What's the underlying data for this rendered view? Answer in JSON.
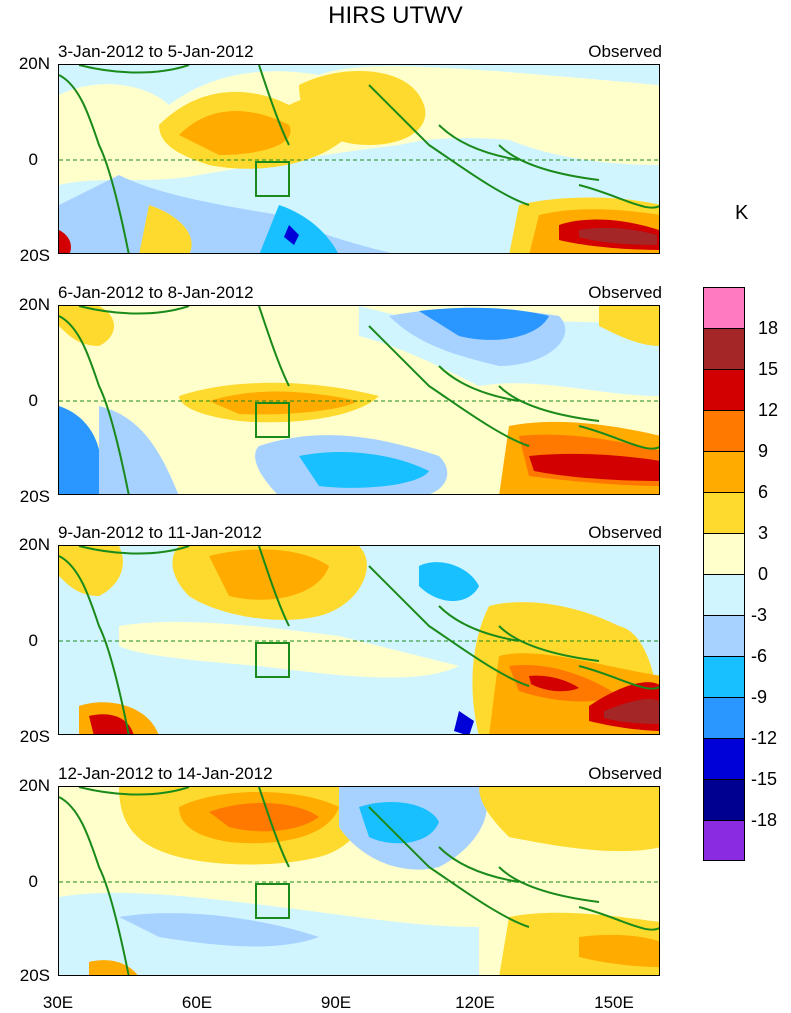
{
  "figure": {
    "title": "HIRS UTWV",
    "unit_label": "K"
  },
  "panels": [
    {
      "date_range": "3-Jan-2012 to 5-Jan-2012",
      "source": "Observed"
    },
    {
      "date_range": "6-Jan-2012 to 8-Jan-2012",
      "source": "Observed"
    },
    {
      "date_range": "9-Jan-2012 to 11-Jan-2012",
      "source": "Observed"
    },
    {
      "date_range": "12-Jan-2012 to 14-Jan-2012",
      "source": "Observed"
    }
  ],
  "axes": {
    "lat_ticks": [
      "20N",
      "0",
      "20S"
    ],
    "lon_ticks": [
      "30E",
      "60E",
      "90E",
      "120E",
      "150E"
    ],
    "lon_range": [
      30,
      160
    ],
    "lat_range": [
      -20,
      20
    ]
  },
  "colorbar": {
    "labels": [
      "18",
      "15",
      "12",
      "9",
      "6",
      "3",
      "0",
      "-3",
      "-6",
      "-9",
      "-12",
      "-15",
      "-18"
    ],
    "colors": [
      "#ff7ac0",
      "#a42626",
      "#d20000",
      "#ff7800",
      "#ffab00",
      "#ffda2e",
      "#ffffcc",
      "#d0f5ff",
      "#a7d2ff",
      "#19c0ff",
      "#2a96ff",
      "#0000d8",
      "#000090",
      "#8a2be2"
    ]
  },
  "palette": {
    "coast": "#1a8a1a",
    "box": "#1a8a1a"
  }
}
